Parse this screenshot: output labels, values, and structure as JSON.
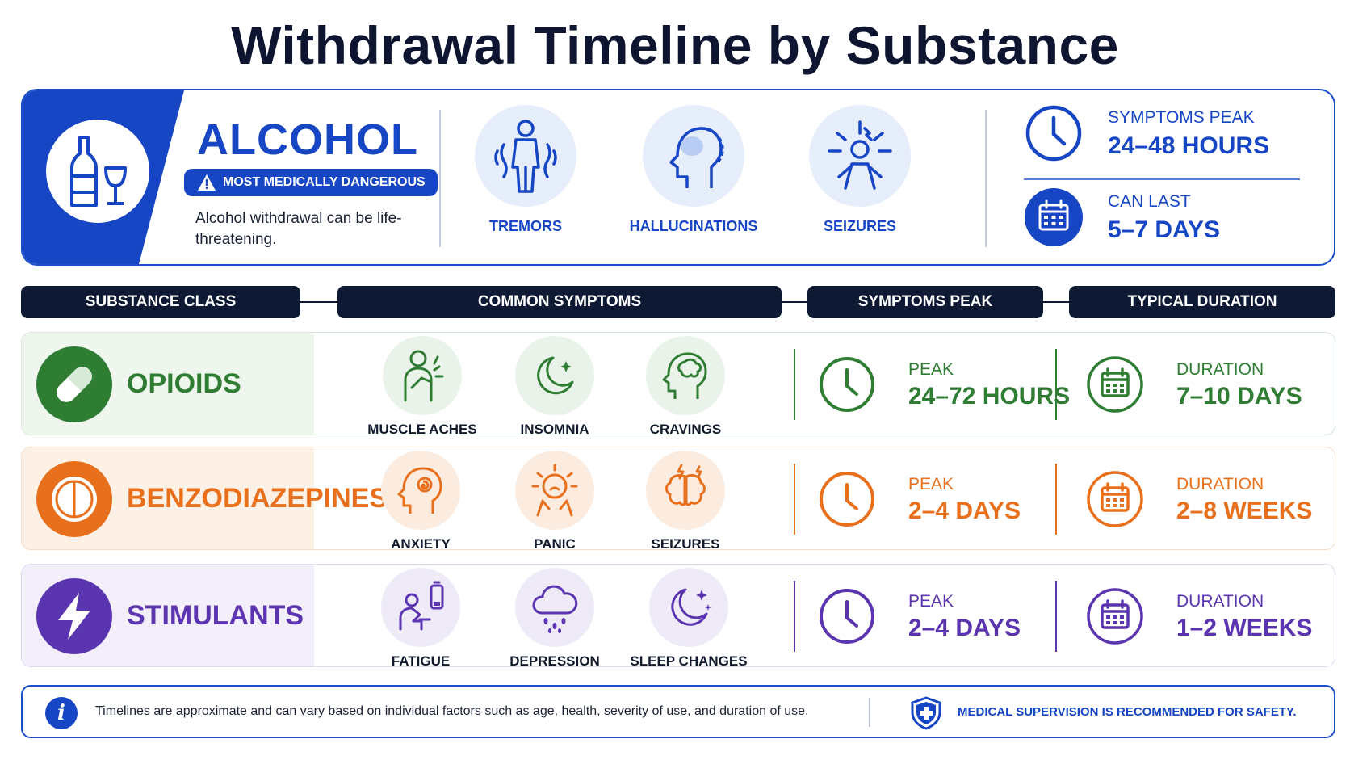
{
  "title": "Withdrawal Timeline by Substance",
  "colors": {
    "blue": "#1746c4",
    "green": "#2e7d32",
    "orange": "#e8701c",
    "purple": "#5b34b0",
    "navy": "#0e1a33"
  },
  "alcohol": {
    "name": "ALCOHOL",
    "icon": "bottle-glass-icon",
    "badge": "MOST MEDICALLY DANGEROUS",
    "description": "Alcohol withdrawal can be life-threatening.",
    "symptoms": [
      {
        "label": "TREMORS",
        "icon": "tremor-person-icon"
      },
      {
        "label": "HALLUCINATIONS",
        "icon": "hallucination-head-icon"
      },
      {
        "label": "SEIZURES",
        "icon": "seizure-person-icon"
      }
    ],
    "peak": {
      "label": "SYMPTOMS PEAK",
      "value": "24–48 HOURS",
      "icon": "clock-icon"
    },
    "duration": {
      "label": "CAN LAST",
      "value": "5–7 DAYS",
      "icon": "calendar-icon"
    }
  },
  "headers": [
    "SUBSTANCE CLASS",
    "COMMON SYMPTOMS",
    "SYMPTOMS PEAK",
    "TYPICAL DURATION"
  ],
  "rows": [
    {
      "name": "OPIOIDS",
      "icon": "pill-capsule-icon",
      "color": "#2e7d32",
      "symptoms": [
        {
          "label": "MUSCLE ACHES",
          "icon": "muscle-ache-icon"
        },
        {
          "label": "INSOMNIA",
          "icon": "moon-icon"
        },
        {
          "label": "CRAVINGS",
          "icon": "brain-head-icon"
        }
      ],
      "peak_label": "PEAK",
      "peak": "24–72 HOURS",
      "duration_label": "DURATION",
      "duration": "7–10 DAYS"
    },
    {
      "name": "BENZODIAZEPINES",
      "icon": "tablet-icon",
      "color": "#e8701c",
      "symptoms": [
        {
          "label": "ANXIETY",
          "icon": "anxiety-head-icon"
        },
        {
          "label": "PANIC",
          "icon": "panic-face-icon"
        },
        {
          "label": "SEIZURES",
          "icon": "brain-lightning-icon"
        }
      ],
      "peak_label": "PEAK",
      "peak": "2–4 DAYS",
      "duration_label": "DURATION",
      "duration": "2–8 WEEKS"
    },
    {
      "name": "STIMULANTS",
      "icon": "lightning-icon",
      "color": "#5b34b0",
      "symptoms": [
        {
          "label": "FATIGUE",
          "icon": "fatigue-battery-icon"
        },
        {
          "label": "DEPRESSION",
          "icon": "rain-cloud-icon"
        },
        {
          "label": "SLEEP CHANGES",
          "icon": "moon-stars-icon"
        }
      ],
      "peak_label": "PEAK",
      "peak": "2–4 DAYS",
      "duration_label": "DURATION",
      "duration": "1–2 WEEKS"
    }
  ],
  "footer": {
    "note": "Timelines are approximate and can vary based on individual factors such as age, health, severity of use, and duration of use.",
    "safety": "MEDICAL SUPERVISION IS RECOMMENDED FOR SAFETY."
  }
}
